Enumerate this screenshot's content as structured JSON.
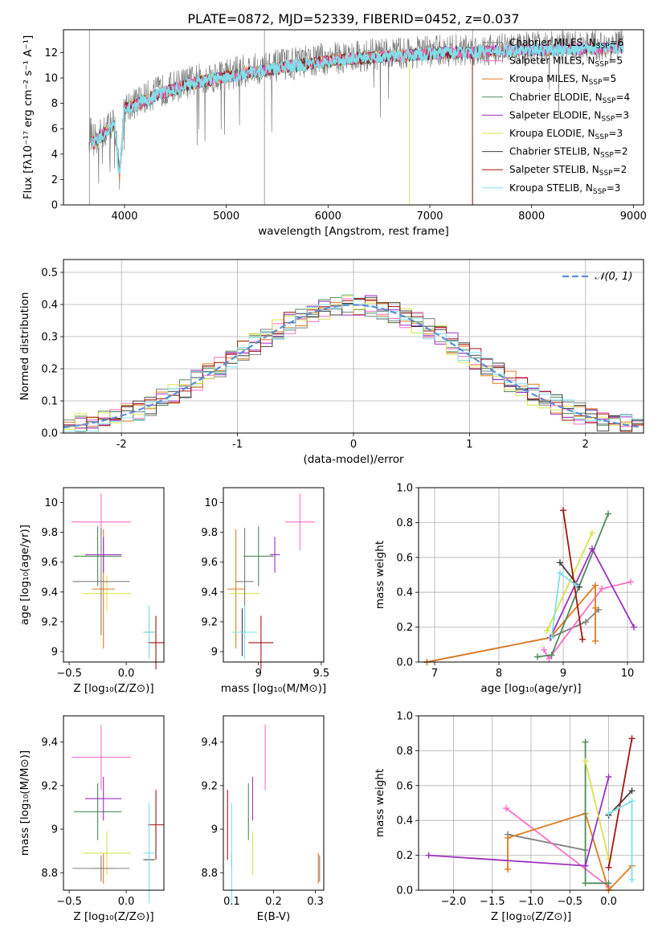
{
  "figure": {
    "title": "PLATE=0872, MJD=52339, FIBERID=0452, z=0.037"
  },
  "colors": {
    "series": [
      "#808080",
      "#ff6ec7",
      "#e07a1f",
      "#4f8a5a",
      "#9b30c0",
      "#d6e34a",
      "#404040",
      "#a31515",
      "#7fe0e8"
    ],
    "gauss": "#5b8fd9",
    "grid": "#b0b0b0"
  },
  "chart_data": [
    {
      "id": "spectrum",
      "type": "line",
      "xlabel": "wavelength [Angstrom, rest frame]",
      "ylabel": "Flux [fλ10⁻¹⁷ erg cm⁻² s⁻¹ A⁻¹]",
      "xlim": [
        3400,
        9100
      ],
      "ylim": [
        0,
        13.8
      ],
      "xticks": [
        4000,
        5000,
        6000,
        7000,
        8000,
        9000
      ],
      "yticks": [
        0,
        2,
        4,
        6,
        8,
        10,
        12
      ],
      "grid": false,
      "legend_position": "right",
      "series": [
        {
          "name": "Chabrier MILES, N_SSP=6"
        },
        {
          "name": "Salpeter MILES, N_SSP=5"
        },
        {
          "name": "Kroupa MILES, N_SSP=5"
        },
        {
          "name": "Chabrier ELODIE, N_SSP=4"
        },
        {
          "name": "Salpeter ELODIE, N_SSP=3"
        },
        {
          "name": "Kroupa ELODIE, N_SSP=3"
        },
        {
          "name": "Chabrier STELIB, N_SSP=2"
        },
        {
          "name": "Salpeter STELIB, N_SSP=2"
        },
        {
          "name": "Kroupa STELIB, N_SSP=3"
        }
      ],
      "spectrum_shape": {
        "x": [
          3650,
          3700,
          3800,
          3900,
          3950,
          4000,
          4100,
          4200,
          4300,
          4400,
          4600,
          4800,
          5000,
          5200,
          5400,
          5600,
          5800,
          6000,
          6200,
          6400,
          6600,
          6800,
          7000,
          7200,
          7400,
          7600,
          7800,
          8000,
          8200,
          8400,
          8600,
          8800,
          8900
        ],
        "y": [
          6.0,
          5.0,
          5.8,
          6.5,
          2.5,
          7.8,
          8.0,
          8.4,
          8.8,
          9.1,
          9.6,
          10.0,
          10.3,
          10.6,
          10.8,
          11.1,
          11.3,
          11.5,
          11.7,
          11.8,
          11.9,
          12.0,
          12.1,
          12.2,
          12.2,
          12.3,
          12.3,
          12.4,
          12.4,
          12.5,
          12.5,
          12.6,
          12.6
        ]
      },
      "model_end_x": [
        8900,
        8900,
        8900,
        7420,
        8900,
        6800,
        8900,
        7420,
        8900
      ],
      "model_start_x": [
        3680,
        3680,
        3680,
        3680,
        3680,
        3680,
        3680,
        3680,
        3680
      ]
    },
    {
      "id": "residual_hist",
      "type": "histogram",
      "xlabel": "(data-model)/error",
      "ylabel": "Normed distribution",
      "xlim": [
        -2.5,
        2.5
      ],
      "ylim": [
        0,
        0.54
      ],
      "xticks": [
        -2,
        -1,
        0,
        1,
        2
      ],
      "yticks": [
        0.0,
        0.1,
        0.2,
        0.3,
        0.4,
        0.5
      ],
      "grid": true,
      "legend_position": "top-right",
      "legend_label": "𝒩(0, 1)",
      "bin_width": 0.1,
      "reference": {
        "type": "gaussian",
        "mean": 0,
        "sigma": 1
      }
    },
    {
      "id": "age_vs_Z",
      "type": "errorbar",
      "xlabel": "Z [log₁₀(Z/Z⊙)]",
      "ylabel": "age  [log₁₀(age/yr)]",
      "xlim": [
        -0.55,
        0.33
      ],
      "ylim": [
        8.93,
        10.1
      ],
      "xticks": [
        -0.5,
        0.0
      ],
      "xticklabels": [
        "−0.5",
        "0.0"
      ],
      "yticks": [
        9.0,
        9.2,
        9.4,
        9.6,
        9.8,
        10.0
      ],
      "grid": false,
      "points": [
        {
          "series": 1,
          "x": -0.22,
          "y": 9.87,
          "xerr": 0.26,
          "yerr": 0.19
        },
        {
          "series": 2,
          "x": -0.2,
          "y": 9.42,
          "xerr": 0.1,
          "yerr": 0.4
        },
        {
          "series": 3,
          "x": -0.25,
          "y": 9.64,
          "xerr": 0.21,
          "yerr": 0.2
        },
        {
          "series": 4,
          "x": -0.2,
          "y": 9.65,
          "xerr": 0.16,
          "yerr": 0.12
        },
        {
          "series": 5,
          "x": -0.17,
          "y": 9.39,
          "xerr": 0.21,
          "yerr": 0.12
        },
        {
          "series": 0,
          "x": -0.22,
          "y": 9.47,
          "xerr": 0.25,
          "yerr": 0.36
        },
        {
          "series": 6,
          "x": 0.2,
          "y": 9.13,
          "xerr": 0.05,
          "yerr": 0.16
        },
        {
          "series": 7,
          "x": 0.26,
          "y": 9.06,
          "xerr": 0.07,
          "yerr": 0.18
        },
        {
          "series": 8,
          "x": 0.2,
          "y": 9.13,
          "xerr": 0.05,
          "yerr": 0.18
        }
      ]
    },
    {
      "id": "age_vs_mass",
      "type": "errorbar",
      "xlabel": "mass [log₁₀(M/M⊙)]",
      "ylabel": "",
      "xlim": [
        8.72,
        9.52
      ],
      "ylim": [
        8.93,
        10.1
      ],
      "xticks": [
        9.0,
        9.5
      ],
      "yticks": [
        9.0,
        9.2,
        9.4,
        9.6,
        9.8,
        10.0
      ],
      "grid": false,
      "points": [
        {
          "series": 1,
          "x": 9.33,
          "y": 9.87,
          "xerr": 0.12,
          "yerr": 0.19
        },
        {
          "series": 2,
          "x": 8.82,
          "y": 9.42,
          "xerr": 0.07,
          "yerr": 0.4
        },
        {
          "series": 3,
          "x": 9.0,
          "y": 9.64,
          "xerr": 0.12,
          "yerr": 0.2
        },
        {
          "series": 4,
          "x": 9.13,
          "y": 9.65,
          "xerr": 0.04,
          "yerr": 0.12
        },
        {
          "series": 5,
          "x": 8.89,
          "y": 9.39,
          "xerr": 0.12,
          "yerr": 0.12
        },
        {
          "series": 0,
          "x": 8.89,
          "y": 9.47,
          "xerr": 0.07,
          "yerr": 0.36
        },
        {
          "series": 6,
          "x": 8.87,
          "y": 9.13,
          "xerr": 0.02,
          "yerr": 0.16
        },
        {
          "series": 7,
          "x": 9.02,
          "y": 9.06,
          "xerr": 0.1,
          "yerr": 0.18
        },
        {
          "series": 8,
          "x": 8.89,
          "y": 9.13,
          "xerr": 0.1,
          "yerr": 0.18
        }
      ]
    },
    {
      "id": "weight_vs_age",
      "type": "line",
      "xlabel": "age  [log₁₀(age/yr)]",
      "ylabel": "mass weight",
      "xlim": [
        6.75,
        10.25
      ],
      "ylim": [
        0,
        1.0
      ],
      "xticks": [
        7,
        8,
        9,
        10
      ],
      "yticks": [
        0.0,
        0.2,
        0.4,
        0.6,
        0.8,
        1.0
      ],
      "grid": true,
      "series": [
        {
          "series": 0,
          "x": [
            6.88,
            8.8,
            9.35,
            9.55
          ],
          "y": [
            0.0,
            0.14,
            0.23,
            0.3
          ]
        },
        {
          "series": 1,
          "x": [
            8.7,
            8.78,
            9.6,
            10.05
          ],
          "y": [
            0.07,
            0.02,
            0.42,
            0.46
          ]
        },
        {
          "series": 2,
          "x": [
            6.88,
            8.8,
            9.5,
            9.5,
            9.5
          ],
          "y": [
            0.0,
            0.14,
            0.44,
            0.31,
            0.12
          ]
        },
        {
          "series": 3,
          "x": [
            8.6,
            8.82,
            9.7
          ],
          "y": [
            0.03,
            0.04,
            0.85
          ]
        },
        {
          "series": 4,
          "x": [
            8.8,
            9.45,
            10.1
          ],
          "y": [
            0.14,
            0.65,
            0.2
          ]
        },
        {
          "series": 5,
          "x": [
            8.75,
            9.45
          ],
          "y": [
            0.18,
            0.74
          ]
        },
        {
          "series": 6,
          "x": [
            8.95,
            9.25
          ],
          "y": [
            0.57,
            0.43
          ]
        },
        {
          "series": 7,
          "x": [
            9.0,
            9.3
          ],
          "y": [
            0.87,
            0.13
          ]
        },
        {
          "series": 8,
          "x": [
            8.82,
            8.95,
            9.2
          ],
          "y": [
            0.14,
            0.51,
            0.44
          ]
        }
      ]
    },
    {
      "id": "mass_vs_Z",
      "type": "errorbar",
      "xlabel": "Z [log₁₀(Z/Z⊙)]",
      "ylabel": "mass [log₁₀(M/M⊙)]",
      "xlim": [
        -0.55,
        0.33
      ],
      "ylim": [
        8.72,
        9.52
      ],
      "xticks": [
        -0.5,
        0.0
      ],
      "xticklabels": [
        "−0.5",
        "0.0"
      ],
      "yticks": [
        8.8,
        9.0,
        9.2,
        9.4
      ],
      "grid": false,
      "points": [
        {
          "series": 1,
          "x": -0.22,
          "y": 9.33,
          "xerr": 0.26,
          "yerr": 0.15
        },
        {
          "series": 2,
          "x": -0.2,
          "y": 8.82,
          "xerr": 0.1,
          "yerr": 0.07
        },
        {
          "series": 3,
          "x": -0.25,
          "y": 9.08,
          "xerr": 0.21,
          "yerr": 0.13
        },
        {
          "series": 4,
          "x": -0.2,
          "y": 9.14,
          "xerr": 0.16,
          "yerr": 0.1
        },
        {
          "series": 5,
          "x": -0.17,
          "y": 8.89,
          "xerr": 0.21,
          "yerr": 0.1
        },
        {
          "series": 0,
          "x": -0.22,
          "y": 8.82,
          "xerr": 0.25,
          "yerr": 0.06
        },
        {
          "series": 6,
          "x": 0.2,
          "y": 8.86,
          "xerr": 0.05,
          "yerr": 0.03
        },
        {
          "series": 7,
          "x": 0.26,
          "y": 9.02,
          "xerr": 0.07,
          "yerr": 0.16
        },
        {
          "series": 8,
          "x": 0.2,
          "y": 8.89,
          "xerr": 0.05,
          "yerr": 0.23
        }
      ]
    },
    {
      "id": "mass_vs_ebv",
      "type": "errorbar",
      "xlabel": "E(B-V)",
      "ylabel": "",
      "xlim": [
        0.08,
        0.32
      ],
      "ylim": [
        8.72,
        9.52
      ],
      "xticks": [
        0.1,
        0.2,
        0.3
      ],
      "yticks": [
        8.8,
        9.0,
        9.2,
        9.4
      ],
      "grid": false,
      "points": [
        {
          "series": 1,
          "x": 0.18,
          "y": 9.33,
          "xerr": 0,
          "yerr": 0.15
        },
        {
          "series": 2,
          "x": 0.307,
          "y": 8.82,
          "xerr": 0,
          "yerr": 0.07
        },
        {
          "series": 3,
          "x": 0.14,
          "y": 9.08,
          "xerr": 0,
          "yerr": 0.13
        },
        {
          "series": 4,
          "x": 0.15,
          "y": 9.14,
          "xerr": 0,
          "yerr": 0.1
        },
        {
          "series": 5,
          "x": 0.15,
          "y": 8.89,
          "xerr": 0,
          "yerr": 0.1
        },
        {
          "series": 0,
          "x": 0.31,
          "y": 8.82,
          "xerr": 0,
          "yerr": 0.06
        },
        {
          "series": 6,
          "x": 0.1,
          "y": 8.86,
          "xerr": 0,
          "yerr": 0.03
        },
        {
          "series": 7,
          "x": 0.09,
          "y": 9.02,
          "xerr": 0,
          "yerr": 0.16
        },
        {
          "series": 8,
          "x": 0.1,
          "y": 8.89,
          "xerr": 0,
          "yerr": 0.23
        }
      ]
    },
    {
      "id": "weight_vs_Z",
      "type": "line",
      "xlabel": "Z [log₁₀(Z/Z⊙)]",
      "ylabel": "mass weight",
      "xlim": [
        -2.45,
        0.45
      ],
      "ylim": [
        0,
        1.0
      ],
      "xticks": [
        -2.0,
        -1.5,
        -1.0,
        -0.5,
        0.0
      ],
      "xticklabels": [
        "−2.0",
        "−1.5",
        "−1.0",
        "−0.5",
        "0.0"
      ],
      "yticks": [
        0.0,
        0.2,
        0.4,
        0.6,
        0.8,
        1.0
      ],
      "grid": true,
      "series": [
        {
          "series": 0,
          "x": [
            -1.3,
            -0.3
          ],
          "y": [
            0.32,
            0.23
          ]
        },
        {
          "series": 1,
          "x": [
            -1.32,
            0.0
          ],
          "y": [
            0.47,
            0.02
          ]
        },
        {
          "series": 2,
          "x": [
            -1.3,
            -1.3,
            -0.3,
            0.0,
            0.3
          ],
          "y": [
            0.12,
            0.3,
            0.44,
            0.0,
            0.14
          ]
        },
        {
          "series": 3,
          "x": [
            -0.3,
            -0.3,
            0.0
          ],
          "y": [
            0.85,
            0.04,
            0.04
          ]
        },
        {
          "series": 4,
          "x": [
            -2.32,
            -0.3,
            0.0
          ],
          "y": [
            0.2,
            0.14,
            0.65
          ]
        },
        {
          "series": 5,
          "x": [
            -0.3,
            0.0
          ],
          "y": [
            0.74,
            0.18
          ]
        },
        {
          "series": 6,
          "x": [
            0.0,
            0.3
          ],
          "y": [
            0.43,
            0.57
          ]
        },
        {
          "series": 7,
          "x": [
            0.0,
            0.3
          ],
          "y": [
            0.13,
            0.87
          ]
        },
        {
          "series": 8,
          "x": [
            0.0,
            0.3,
            0.3
          ],
          "y": [
            0.44,
            0.51,
            0.06
          ]
        }
      ]
    }
  ]
}
